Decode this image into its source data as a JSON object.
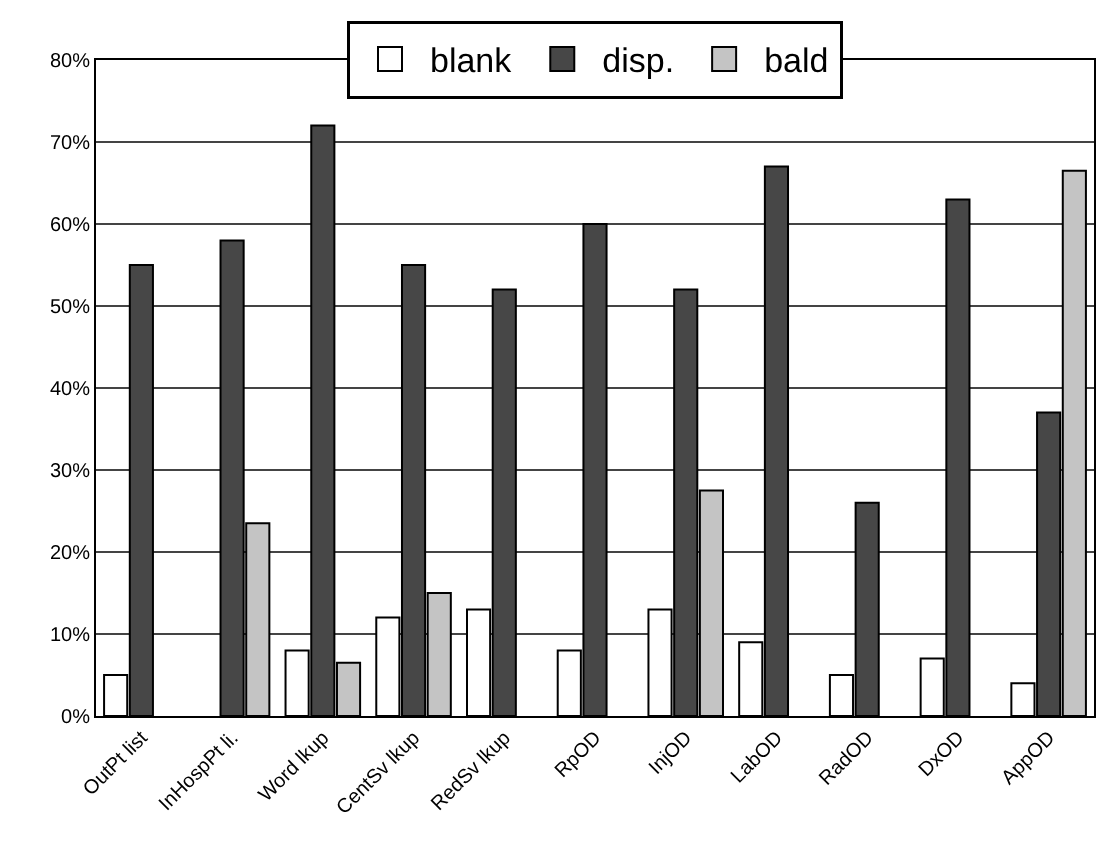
{
  "chart_data": {
    "type": "bar",
    "categories": [
      "OutPt list",
      "InHospPt li.",
      "Word lkup",
      "CentSv lkup",
      "RedSv lkup",
      "RpOD",
      "InjOD",
      "LabOD",
      "RadOD",
      "DxOD",
      "AppOD"
    ],
    "series": [
      {
        "name": "blank",
        "color": "#ffffff",
        "values": [
          5,
          null,
          8,
          12,
          13,
          8,
          13,
          9,
          5,
          7,
          4
        ]
      },
      {
        "name": "disp.",
        "color": "#474747",
        "values": [
          55,
          58,
          72,
          55,
          52,
          60,
          52,
          67,
          26,
          63,
          37
        ]
      },
      {
        "name": "bald",
        "color": "#c4c4c4",
        "values": [
          null,
          23.5,
          6.5,
          15,
          null,
          null,
          27.5,
          null,
          null,
          null,
          66.5
        ]
      }
    ],
    "ylim": [
      0,
      80
    ],
    "yticks": [
      {
        "value": 0,
        "label": "0%"
      },
      {
        "value": 10,
        "label": "10%"
      },
      {
        "value": 20,
        "label": "20%"
      },
      {
        "value": 30,
        "label": "30%"
      },
      {
        "value": 40,
        "label": "40%"
      },
      {
        "value": 50,
        "label": "50%"
      },
      {
        "value": 60,
        "label": "60%"
      },
      {
        "value": 70,
        "label": "70%"
      },
      {
        "value": 80,
        "label": "80%"
      }
    ],
    "grid": "y",
    "legend": "top"
  }
}
